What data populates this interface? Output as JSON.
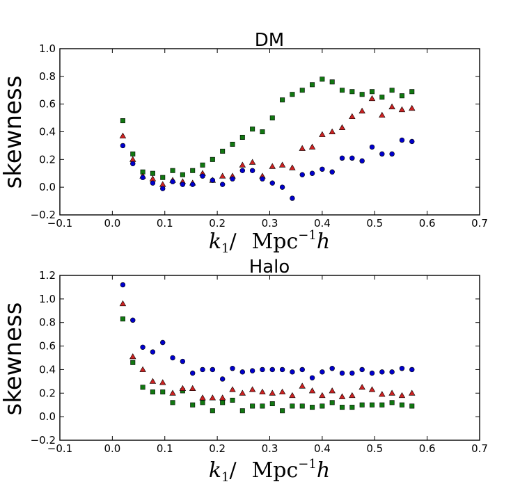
{
  "colors": {
    "series_1": "#0000cc",
    "series_2": "#cc2222",
    "series_3": "#117711"
  },
  "chart_data": [
    {
      "type": "scatter",
      "title": "DM",
      "xlabel": {
        "var": "k",
        "sub": "1",
        "sep": "/",
        "unit": "Mpc",
        "exp": "−1",
        "h": "h"
      },
      "ylabel": "skewness",
      "xlim": [
        -0.1,
        0.7
      ],
      "ylim": [
        -0.2,
        1.0
      ],
      "xticks": [
        -0.1,
        0.0,
        0.1,
        0.2,
        0.3,
        0.4,
        0.5,
        0.6,
        0.7
      ],
      "xtick_labels": [
        "−0.1",
        "0.0",
        "0.1",
        "0.2",
        "0.3",
        "0.4",
        "0.5",
        "0.6",
        "0.7"
      ],
      "yticks": [
        -0.2,
        0.0,
        0.2,
        0.4,
        0.6,
        0.8,
        1.0
      ],
      "ytick_labels": [
        "−0.2",
        "0.0",
        "0.2",
        "0.4",
        "0.6",
        "0.8",
        "1.0"
      ],
      "x": [
        0.02,
        0.039,
        0.058,
        0.077,
        0.096,
        0.115,
        0.134,
        0.153,
        0.172,
        0.191,
        0.21,
        0.229,
        0.248,
        0.267,
        0.286,
        0.305,
        0.324,
        0.343,
        0.362,
        0.381,
        0.4,
        0.419,
        0.438,
        0.457,
        0.476,
        0.495,
        0.514,
        0.533,
        0.552,
        0.571
      ],
      "series": [
        {
          "name": "circles",
          "marker": "circle",
          "values": [
            0.3,
            0.17,
            0.07,
            0.03,
            -0.01,
            0.04,
            0.02,
            0.02,
            0.08,
            0.05,
            0.02,
            0.06,
            0.12,
            0.12,
            0.06,
            0.03,
            0.0,
            -0.08,
            0.09,
            0.1,
            0.13,
            0.11,
            0.21,
            0.21,
            0.19,
            0.29,
            0.24,
            0.24,
            0.34,
            0.33
          ]
        },
        {
          "name": "triangles",
          "marker": "triangle",
          "values": [
            0.37,
            0.2,
            0.08,
            0.06,
            0.02,
            0.05,
            0.04,
            0.03,
            0.1,
            0.05,
            0.08,
            0.08,
            0.16,
            0.18,
            0.08,
            0.15,
            0.16,
            0.14,
            0.28,
            0.29,
            0.38,
            0.4,
            0.43,
            0.51,
            0.55,
            0.64,
            0.52,
            0.58,
            0.56,
            0.57
          ]
        },
        {
          "name": "squares",
          "marker": "square",
          "values": [
            0.48,
            0.24,
            0.11,
            0.1,
            0.07,
            0.12,
            0.09,
            0.12,
            0.16,
            0.2,
            0.26,
            0.31,
            0.36,
            0.42,
            0.4,
            0.5,
            0.63,
            0.67,
            0.7,
            0.74,
            0.78,
            0.76,
            0.7,
            0.69,
            0.67,
            0.69,
            0.65,
            0.7,
            0.66,
            0.69
          ]
        }
      ]
    },
    {
      "type": "scatter",
      "title": "Halo",
      "xlabel": {
        "var": "k",
        "sub": "1",
        "sep": "/",
        "unit": "Mpc",
        "exp": "−1",
        "h": "h"
      },
      "ylabel": "skewness",
      "xlim": [
        -0.1,
        0.7
      ],
      "ylim": [
        -0.2,
        1.2
      ],
      "xticks": [
        -0.1,
        0.0,
        0.1,
        0.2,
        0.3,
        0.4,
        0.5,
        0.6,
        0.7
      ],
      "xtick_labels": [
        "−0.1",
        "0.0",
        "0.1",
        "0.2",
        "0.3",
        "0.4",
        "0.5",
        "0.6",
        "0.7"
      ],
      "yticks": [
        -0.2,
        0.0,
        0.2,
        0.4,
        0.6,
        0.8,
        1.0,
        1.2
      ],
      "ytick_labels": [
        "−0.2",
        "0.0",
        "0.2",
        "0.4",
        "0.6",
        "0.8",
        "1.0",
        "1.2"
      ],
      "x": [
        0.02,
        0.039,
        0.058,
        0.077,
        0.096,
        0.115,
        0.134,
        0.153,
        0.172,
        0.191,
        0.21,
        0.229,
        0.248,
        0.267,
        0.286,
        0.305,
        0.324,
        0.343,
        0.362,
        0.381,
        0.4,
        0.419,
        0.438,
        0.457,
        0.476,
        0.495,
        0.514,
        0.533,
        0.552,
        0.571
      ],
      "series": [
        {
          "name": "circles",
          "marker": "circle",
          "values": [
            1.12,
            0.82,
            0.59,
            0.55,
            0.63,
            0.5,
            0.47,
            0.37,
            0.4,
            0.4,
            0.32,
            0.41,
            0.38,
            0.39,
            0.4,
            0.4,
            0.4,
            0.38,
            0.4,
            0.33,
            0.38,
            0.41,
            0.37,
            0.37,
            0.4,
            0.37,
            0.38,
            0.38,
            0.41,
            0.4
          ]
        },
        {
          "name": "triangles",
          "marker": "triangle",
          "values": [
            0.96,
            0.51,
            0.4,
            0.3,
            0.29,
            0.2,
            0.24,
            0.24,
            0.16,
            0.16,
            0.16,
            0.23,
            0.2,
            0.23,
            0.21,
            0.2,
            0.21,
            0.18,
            0.26,
            0.22,
            0.18,
            0.22,
            0.17,
            0.18,
            0.25,
            0.23,
            0.19,
            0.2,
            0.18,
            0.2
          ]
        },
        {
          "name": "squares",
          "marker": "square",
          "values": [
            0.83,
            0.46,
            0.25,
            0.21,
            0.21,
            0.12,
            0.22,
            0.1,
            0.12,
            0.05,
            0.12,
            0.14,
            0.05,
            0.09,
            0.09,
            0.11,
            0.05,
            0.09,
            0.09,
            0.08,
            0.09,
            0.12,
            0.08,
            0.08,
            0.1,
            0.1,
            0.1,
            0.12,
            0.1,
            0.09
          ]
        }
      ]
    }
  ]
}
